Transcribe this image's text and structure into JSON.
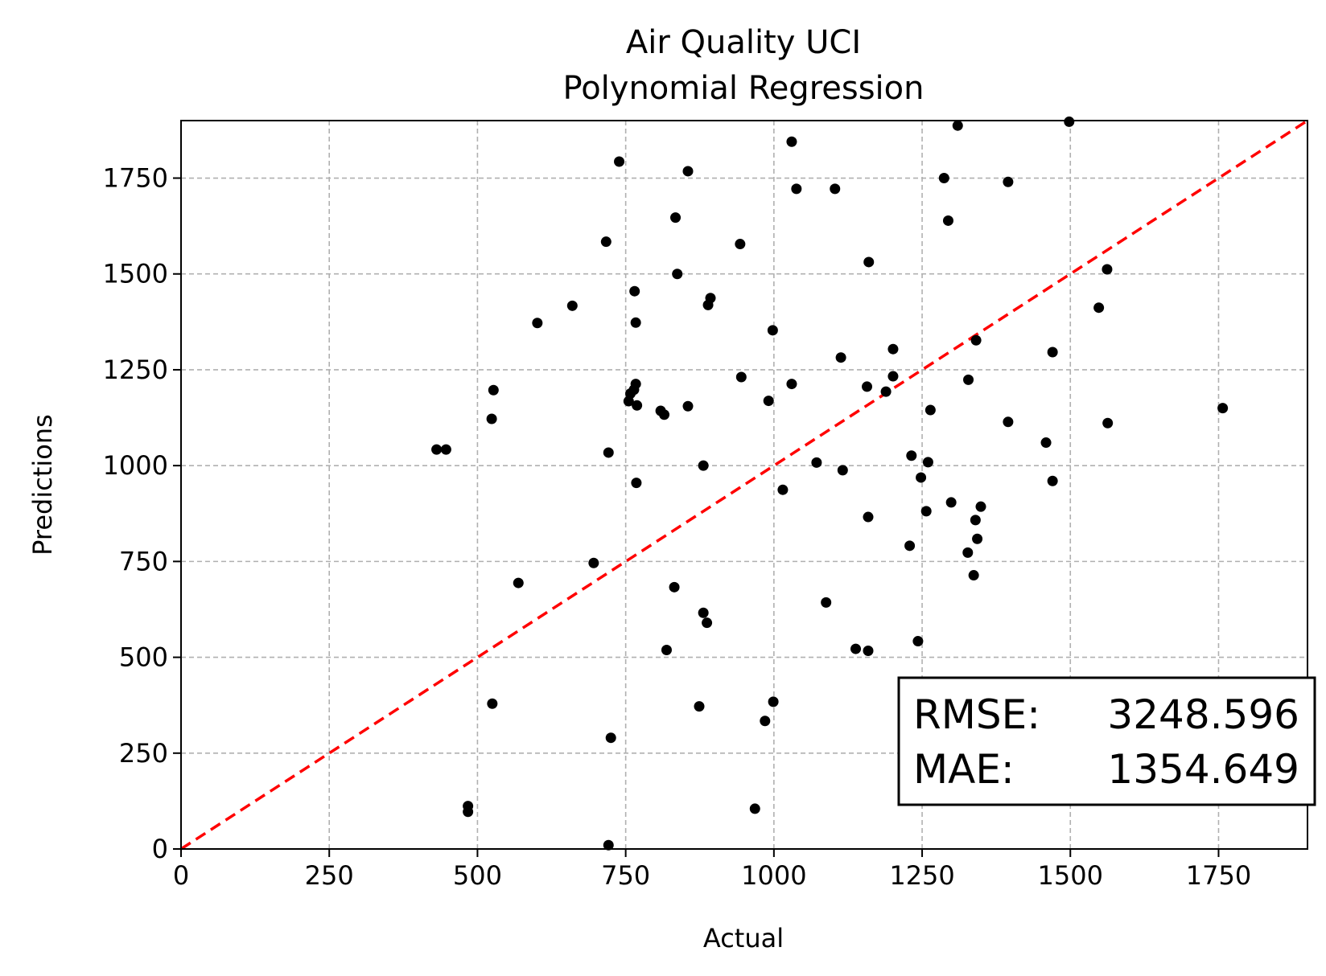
{
  "chart_data": {
    "type": "scatter",
    "title": "Air Quality UCI",
    "subtitle": "Polynomial Regression",
    "xlabel": "Actual",
    "ylabel": "Predictions",
    "xlim": [
      0,
      1900
    ],
    "ylim": [
      0,
      1900
    ],
    "xticks": [
      0,
      250,
      500,
      750,
      1000,
      1250,
      1500,
      1750
    ],
    "yticks": [
      0,
      250,
      500,
      750,
      1000,
      1250,
      1500,
      1750
    ],
    "grid": true,
    "point_color": "#000000",
    "reference_line": {
      "from": [
        0,
        0
      ],
      "to": [
        1900,
        1900
      ],
      "color": "#ff0000",
      "style": "dashed"
    },
    "stats": {
      "rmse_label": "RMSE:",
      "rmse_value": "3248.596",
      "mae_label": "MAE:",
      "mae_value": "1354.649"
    },
    "series": [
      {
        "points": [
          [
            1310,
            1887
          ],
          [
            1498,
            1897
          ],
          [
            1030,
            1845
          ],
          [
            739,
            1793
          ],
          [
            855,
            1768
          ],
          [
            1287,
            1750
          ],
          [
            1395,
            1740
          ],
          [
            1038,
            1722
          ],
          [
            1103,
            1722
          ],
          [
            834,
            1647
          ],
          [
            1294,
            1639
          ],
          [
            717,
            1584
          ],
          [
            943,
            1578
          ],
          [
            1160,
            1531
          ],
          [
            1562,
            1512
          ],
          [
            837,
            1500
          ],
          [
            765,
            1455
          ],
          [
            893,
            1437
          ],
          [
            889,
            1419
          ],
          [
            660,
            1417
          ],
          [
            1548,
            1412
          ],
          [
            601,
            1372
          ],
          [
            767,
            1373
          ],
          [
            998,
            1353
          ],
          [
            1341,
            1327
          ],
          [
            1201,
            1304
          ],
          [
            1470,
            1296
          ],
          [
            1113,
            1282
          ],
          [
            1201,
            1233
          ],
          [
            945,
            1231
          ],
          [
            1328,
            1224
          ],
          [
            767,
            1213
          ],
          [
            1030,
            1213
          ],
          [
            1157,
            1206
          ],
          [
            527,
            1197
          ],
          [
            764,
            1198
          ],
          [
            1189,
            1193
          ],
          [
            758,
            1188
          ],
          [
            755,
            1168
          ],
          [
            991,
            1169
          ],
          [
            769,
            1157
          ],
          [
            855,
            1155
          ],
          [
            809,
            1143
          ],
          [
            815,
            1133
          ],
          [
            1264,
            1145
          ],
          [
            1757,
            1150
          ],
          [
            524,
            1122
          ],
          [
            1395,
            1114
          ],
          [
            1563,
            1111
          ],
          [
            1459,
            1060
          ],
          [
            431,
            1042
          ],
          [
            447,
            1042
          ],
          [
            721,
            1034
          ],
          [
            1232,
            1026
          ],
          [
            1260,
            1009
          ],
          [
            1072,
            1008
          ],
          [
            881,
            1000
          ],
          [
            1116,
            988
          ],
          [
            1248,
            969
          ],
          [
            768,
            955
          ],
          [
            1470,
            960
          ],
          [
            1015,
            937
          ],
          [
            1299,
            904
          ],
          [
            1349,
            893
          ],
          [
            1257,
            881
          ],
          [
            1340,
            858
          ],
          [
            1159,
            866
          ],
          [
            1343,
            809
          ],
          [
            1229,
            791
          ],
          [
            1327,
            773
          ],
          [
            696,
            746
          ],
          [
            1337,
            714
          ],
          [
            569,
            694
          ],
          [
            832,
            683
          ],
          [
            1088,
            643
          ],
          [
            881,
            616
          ],
          [
            887,
            590
          ],
          [
            819,
            519
          ],
          [
            1138,
            522
          ],
          [
            1159,
            517
          ],
          [
            1243,
            542
          ],
          [
            525,
            379
          ],
          [
            874,
            372
          ],
          [
            999,
            384
          ],
          [
            985,
            334
          ],
          [
            725,
            290
          ],
          [
            484,
            112
          ],
          [
            484,
            97
          ],
          [
            968,
            105
          ],
          [
            721,
            10
          ]
        ]
      }
    ]
  }
}
